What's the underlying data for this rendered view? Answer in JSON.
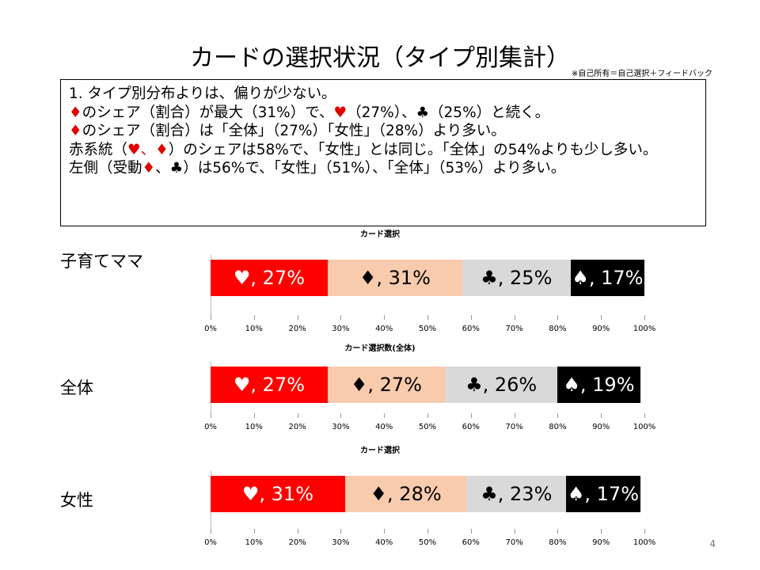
{
  "title": "カードの選択状況（タイプ別集計）",
  "note": "※自己所有＝自己選択＋フィードバック",
  "summary": {
    "line1": "1. タイプ別分布よりは、偏りが少ない。",
    "line2": {
      "mark_a": "♦",
      "text_a": "のシェア（割合）が最大（31%）で、",
      "mark_b": "♥",
      "text_b": "（27%）、♣（25%）と続く。"
    },
    "line3": {
      "mark": "♦",
      "text": "のシェア（割合）は「全体」（27%）「女性」（28%）より多い。"
    },
    "line4": {
      "pre": "赤系統（",
      "marks": "♥、♦",
      "post": "）のシェアは58%で、「女性」とは同じ。「全体」の54%よりも少し多い。"
    },
    "line5": {
      "pre": "左側（受動",
      "mark": "♦",
      "post": "、♣）は56%で、「女性」（51%）、「全体」（53%）より多い。"
    }
  },
  "colors": {
    "heart": "#ff0000",
    "diamond": "#f8cbad",
    "club": "#d9d9d9",
    "spade": "#000000",
    "accent_red": "#e00000"
  },
  "chart_data": [
    {
      "type": "bar",
      "title": "カード選択",
      "row_label": "子育てママ",
      "categories": [
        "♥",
        "♦",
        "♣",
        "♠"
      ],
      "values": [
        27,
        31,
        25,
        17
      ],
      "labels": [
        "♥, 27%",
        "♦, 31%",
        "♣, 25%",
        "♠, 17%"
      ],
      "xlim": [
        0,
        100
      ],
      "ticks": [
        "0%",
        "10%",
        "20%",
        "30%",
        "40%",
        "50%",
        "60%",
        "70%",
        "80%",
        "90%",
        "100%"
      ],
      "stacked": true
    },
    {
      "type": "bar",
      "title": "カード選択数(全体)",
      "row_label": "全体",
      "categories": [
        "♥",
        "♦",
        "♣",
        "♠"
      ],
      "values": [
        27,
        27,
        26,
        19
      ],
      "labels": [
        "♥, 27%",
        "♦, 27%",
        "♣, 26%",
        "♠, 19%"
      ],
      "xlim": [
        0,
        100
      ],
      "ticks": [
        "0%",
        "10%",
        "20%",
        "30%",
        "40%",
        "50%",
        "60%",
        "70%",
        "80%",
        "90%",
        "100%"
      ],
      "stacked": true
    },
    {
      "type": "bar",
      "title": "カード選択",
      "row_label": "女性",
      "categories": [
        "♥",
        "♦",
        "♣",
        "♠"
      ],
      "values": [
        31,
        28,
        23,
        17
      ],
      "labels": [
        "♥, 31%",
        "♦, 28%",
        "♣, 23%",
        "♠, 17%"
      ],
      "xlim": [
        0,
        100
      ],
      "ticks": [
        "0%",
        "10%",
        "20%",
        "30%",
        "40%",
        "50%",
        "60%",
        "70%",
        "80%",
        "90%",
        "100%"
      ],
      "stacked": true
    }
  ],
  "page_number": "4"
}
